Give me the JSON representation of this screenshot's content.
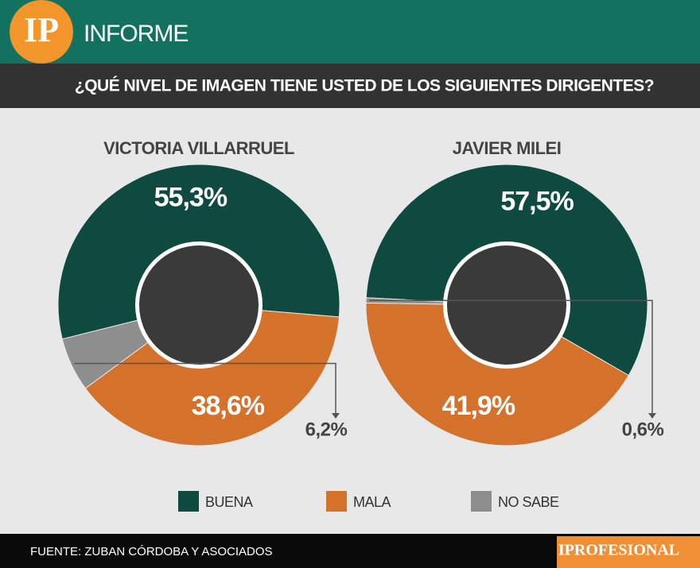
{
  "header": {
    "logo": "IP",
    "section": "INFORME",
    "question": "¿QUÉ NIVEL DE IMAGEN TIENE USTED DE LOS SIGUIENTES DIRIGENTES?"
  },
  "chart_data": {
    "type": "pie",
    "categories": [
      "BUENA",
      "MALA",
      "NO SABE"
    ],
    "colors": [
      "#0e4a40",
      "#d4722b",
      "#8e8e8e"
    ],
    "series": [
      {
        "name": "VICTORIA VILLARRUEL",
        "values": [
          55.3,
          38.6,
          6.2
        ],
        "value_labels": [
          "55,3%",
          "38,6%",
          "6,2%"
        ]
      },
      {
        "name": "JAVIER MILEI",
        "values": [
          57.5,
          41.9,
          0.6
        ],
        "value_labels": [
          "57,5%",
          "41,9%",
          "0,6%"
        ]
      }
    ]
  },
  "footer": {
    "source": "FUENTE: ZUBAN CÓRDOBA Y ASOCIADOS",
    "brand": "IPROFESIONAL"
  }
}
